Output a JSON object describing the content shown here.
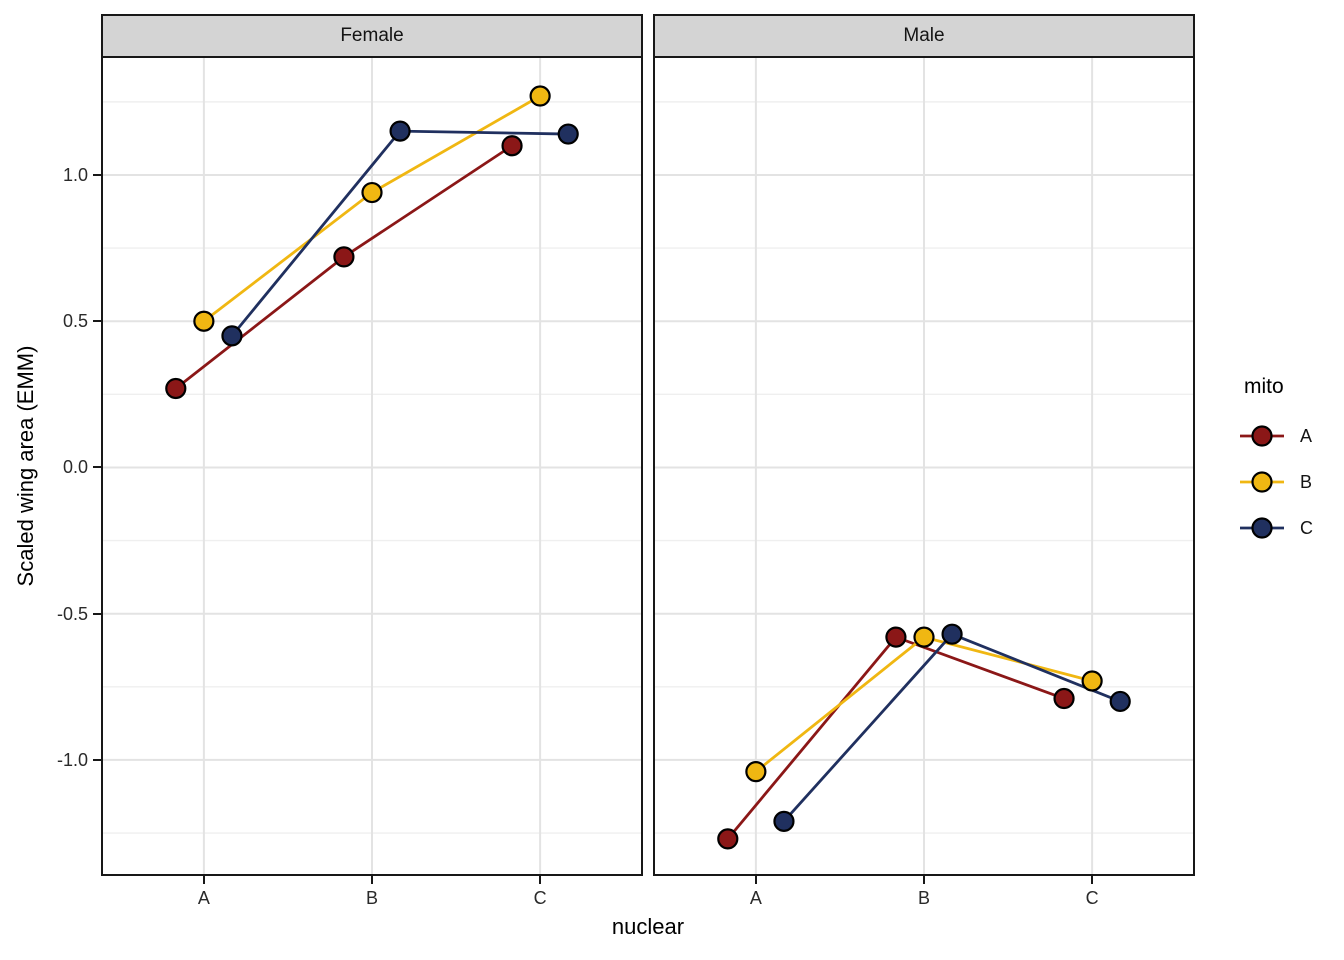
{
  "chart": {
    "facets": [
      {
        "label": "Female"
      },
      {
        "label": "Male"
      }
    ],
    "x_axis": {
      "title": "nuclear",
      "categories": [
        "A",
        "B",
        "C"
      ]
    },
    "y_axis": {
      "title": "Scaled wing area (EMM)",
      "tick_labels": [
        "1.0",
        "0.5",
        "0.0",
        "-0.5",
        "-1.0"
      ],
      "tick_values": [
        1.0,
        0.5,
        0.0,
        -0.5,
        -1.0
      ],
      "minor_tick_values": [
        1.25,
        0.75,
        0.25,
        -0.25,
        -0.75,
        -1.25
      ],
      "range": [
        -1.39,
        1.4
      ]
    },
    "legend": {
      "title": "mito",
      "entries": [
        {
          "label": "A",
          "color": "#8B1717"
        },
        {
          "label": "B",
          "color": "#F0B712"
        },
        {
          "label": "C",
          "color": "#20305F"
        }
      ]
    },
    "colors": {
      "strip_fill": "#D4D4D4",
      "panel_border": "#181818",
      "grid_major": "#E3E3E3",
      "grid_minor": "#EFEFEF",
      "point_stroke": "#000000"
    }
  },
  "chart_data": {
    "type": "line",
    "title": "",
    "xlabel": "nuclear",
    "ylabel": "Scaled wing area (EMM)",
    "categories": [
      "A",
      "B",
      "C"
    ],
    "ylim": [
      -1.39,
      1.4
    ],
    "grid": true,
    "legend_position": "right",
    "legend_title": "mito",
    "dodge_offsets": [
      -0.167,
      0,
      0.167
    ],
    "facets": [
      {
        "name": "Female",
        "series": [
          {
            "name": "A",
            "color": "#8B1717",
            "values": [
              0.27,
              0.72,
              1.1
            ]
          },
          {
            "name": "B",
            "color": "#F0B712",
            "values": [
              0.5,
              0.94,
              1.27
            ]
          },
          {
            "name": "C",
            "color": "#20305F",
            "values": [
              0.45,
              1.15,
              1.14
            ]
          }
        ]
      },
      {
        "name": "Male",
        "series": [
          {
            "name": "A",
            "color": "#8B1717",
            "values": [
              -1.27,
              -0.58,
              -0.79
            ]
          },
          {
            "name": "B",
            "color": "#F0B712",
            "values": [
              -1.04,
              -0.58,
              -0.73
            ]
          },
          {
            "name": "C",
            "color": "#20305F",
            "values": [
              -1.21,
              -0.57,
              -0.8
            ]
          }
        ]
      }
    ]
  }
}
